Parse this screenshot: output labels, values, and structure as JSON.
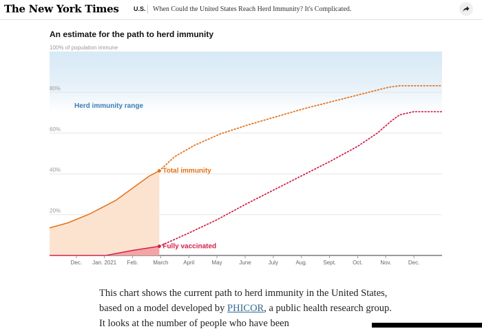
{
  "header": {
    "logo": "The New York Times",
    "section": "U.S.",
    "headline": "When Could the United States Reach Herd Immunity? It's Complicated.",
    "share_icon": "share-arrow-icon"
  },
  "chart_data": {
    "type": "line",
    "title": "An estimate for the path to herd immunity",
    "ylabel": "of population immune",
    "ylim": [
      0,
      100
    ],
    "yticks": [
      "100% of population immune",
      "80%",
      "60%",
      "40%",
      "20%"
    ],
    "ytick_values": [
      100,
      80,
      60,
      40,
      20
    ],
    "x_labels": [
      "Dec.",
      "Jan. 2021",
      "Feb.",
      "March",
      "April",
      "May",
      "June",
      "July",
      "Aug.",
      "Sept.",
      "Oct.",
      "Nov.",
      "Dec."
    ],
    "x_label_months": [
      1,
      2,
      3,
      4,
      5,
      6,
      7,
      8,
      9,
      10,
      11,
      12,
      13
    ],
    "x_range": [
      0.05,
      14.0
    ],
    "herd_immunity_range": {
      "label": "Herd immunity range",
      "min": 70,
      "max": 100
    },
    "series": [
      {
        "name": "Total immunity",
        "color": "#e57017",
        "fill": "#fbe3d0",
        "observed": [
          [
            0.05,
            13.5
          ],
          [
            0.7,
            16
          ],
          [
            1.5,
            20.5
          ],
          [
            2.4,
            27
          ],
          [
            3.1,
            34
          ],
          [
            3.6,
            39
          ],
          [
            3.95,
            41.5
          ]
        ],
        "projected": [
          [
            3.95,
            41.5
          ],
          [
            4.5,
            48.5
          ],
          [
            5.2,
            54
          ],
          [
            6.1,
            59.5
          ],
          [
            7.1,
            64
          ],
          [
            8.1,
            68
          ],
          [
            9.1,
            72
          ],
          [
            10.1,
            75.5
          ],
          [
            11.1,
            79
          ],
          [
            12.1,
            82.5
          ],
          [
            12.5,
            83.2
          ],
          [
            14.0,
            83.2
          ]
        ]
      },
      {
        "name": "Fully vaccinated",
        "color": "#d4204a",
        "fill": "#f3a4a4",
        "observed": [
          [
            0.05,
            0
          ],
          [
            2.05,
            0
          ],
          [
            3.0,
            2.5
          ],
          [
            3.95,
            4.5
          ]
        ],
        "projected": [
          [
            3.95,
            4.5
          ],
          [
            5.0,
            11
          ],
          [
            6.0,
            17.5
          ],
          [
            7.0,
            25
          ],
          [
            8.0,
            32
          ],
          [
            9.0,
            39
          ],
          [
            10.0,
            46
          ],
          [
            11.0,
            53.5
          ],
          [
            11.7,
            60
          ],
          [
            12.2,
            66
          ],
          [
            12.5,
            69
          ],
          [
            13.0,
            70.5
          ],
          [
            14.0,
            70.5
          ]
        ]
      }
    ],
    "grid": true
  },
  "article": {
    "text_before_link": "This chart shows the current path to herd immunity in the United States, based on a model developed by ",
    "link_text": "PHICOR",
    "text_after_link": ", a public health research group. It looks at the number of people who have been"
  }
}
